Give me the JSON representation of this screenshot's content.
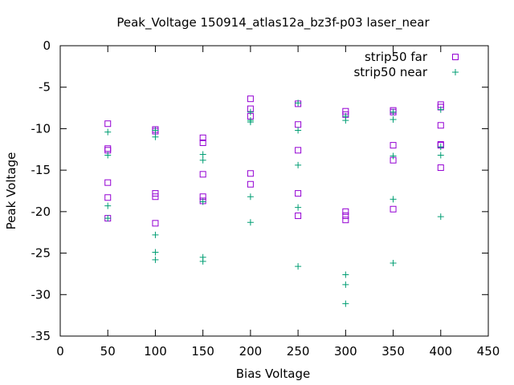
{
  "chart_data": {
    "type": "scatter",
    "title": "Peak_Voltage 150914_atlas12a_bz3f-p03 laser_near",
    "xlabel": "Bias Voltage",
    "ylabel": "Peak Voltage",
    "xlim": [
      0,
      450
    ],
    "ylim": [
      -35,
      0
    ],
    "xticks": [
      0,
      50,
      100,
      150,
      200,
      250,
      300,
      350,
      400,
      450
    ],
    "yticks": [
      0,
      -5,
      -10,
      -15,
      -20,
      -25,
      -30,
      -35
    ],
    "xtick_labels": [
      "0",
      "50",
      "100",
      "150",
      "200",
      "250",
      "300",
      "350",
      "400",
      "450"
    ],
    "ytick_labels": [
      "0",
      "-5",
      "-10",
      "-15",
      "-20",
      "-25",
      "-30",
      "-35"
    ],
    "grid": false,
    "legend_position": "top-right",
    "series": [
      {
        "name": "strip50 far",
        "marker": "square",
        "color": "#9400d3",
        "points": [
          [
            50,
            -9.4
          ],
          [
            50,
            -12.4
          ],
          [
            50,
            -12.6
          ],
          [
            50,
            -16.5
          ],
          [
            50,
            -18.3
          ],
          [
            50,
            -20.8
          ],
          [
            100,
            -10.1
          ],
          [
            100,
            -10.3
          ],
          [
            100,
            -17.8
          ],
          [
            100,
            -18.2
          ],
          [
            100,
            -21.4
          ],
          [
            150,
            -11.1
          ],
          [
            150,
            -11.7
          ],
          [
            150,
            -15.5
          ],
          [
            150,
            -18.2
          ],
          [
            150,
            -18.7
          ],
          [
            200,
            -6.4
          ],
          [
            200,
            -7.6
          ],
          [
            200,
            -8.5
          ],
          [
            200,
            -15.4
          ],
          [
            200,
            -16.7
          ],
          [
            250,
            -7.0
          ],
          [
            250,
            -9.5
          ],
          [
            250,
            -12.6
          ],
          [
            250,
            -17.8
          ],
          [
            250,
            -20.5
          ],
          [
            300,
            -7.9
          ],
          [
            300,
            -8.3
          ],
          [
            300,
            -20.0
          ],
          [
            300,
            -20.5
          ],
          [
            300,
            -21.0
          ],
          [
            350,
            -7.8
          ],
          [
            350,
            -8.0
          ],
          [
            350,
            -12.0
          ],
          [
            350,
            -13.8
          ],
          [
            350,
            -19.7
          ],
          [
            400,
            -7.1
          ],
          [
            400,
            -7.4
          ],
          [
            400,
            -9.6
          ],
          [
            400,
            -11.9
          ],
          [
            400,
            -12.0
          ],
          [
            400,
            -14.7
          ]
        ]
      },
      {
        "name": "strip50 near",
        "marker": "plus",
        "color": "#009e73",
        "points": [
          [
            50,
            -10.4
          ],
          [
            50,
            -13.2
          ],
          [
            50,
            -19.3
          ],
          [
            50,
            -20.8
          ],
          [
            100,
            -10.2
          ],
          [
            100,
            -11.0
          ],
          [
            100,
            -22.8
          ],
          [
            100,
            -24.9
          ],
          [
            100,
            -25.8
          ],
          [
            150,
            -13.1
          ],
          [
            150,
            -13.8
          ],
          [
            150,
            -18.8
          ],
          [
            150,
            -25.5
          ],
          [
            150,
            -26.0
          ],
          [
            200,
            -8.0
          ],
          [
            200,
            -9.0
          ],
          [
            200,
            -9.2
          ],
          [
            200,
            -18.2
          ],
          [
            200,
            -21.3
          ],
          [
            250,
            -6.9
          ],
          [
            250,
            -10.2
          ],
          [
            250,
            -14.4
          ],
          [
            250,
            -19.5
          ],
          [
            250,
            -26.6
          ],
          [
            300,
            -8.5
          ],
          [
            300,
            -9.0
          ],
          [
            300,
            -27.6
          ],
          [
            300,
            -28.8
          ],
          [
            300,
            -31.1
          ],
          [
            350,
            -8.0
          ],
          [
            350,
            -8.9
          ],
          [
            350,
            -13.3
          ],
          [
            350,
            -18.5
          ],
          [
            350,
            -26.2
          ],
          [
            400,
            -7.7
          ],
          [
            400,
            -12.2
          ],
          [
            400,
            -13.2
          ],
          [
            400,
            -20.6
          ]
        ]
      }
    ]
  }
}
